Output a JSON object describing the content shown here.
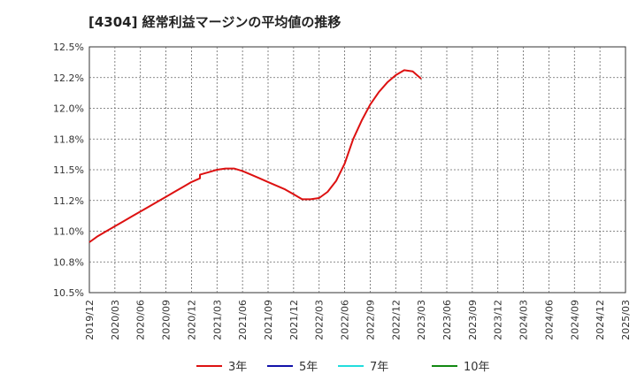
{
  "chart_data": {
    "type": "line",
    "title": "[4304]  経常利益マージンの平均値の推移",
    "xlabel": "",
    "ylabel": "",
    "ylim": [
      10.5,
      12.5
    ],
    "y_ticks": [
      "10.5%",
      "10.8%",
      "11.0%",
      "11.2%",
      "11.5%",
      "11.8%",
      "12.0%",
      "12.2%",
      "12.5%"
    ],
    "y_tick_values": [
      10.5,
      10.75,
      11.0,
      11.25,
      11.5,
      11.75,
      12.0,
      12.25,
      12.5
    ],
    "x_ticks": [
      "2019/12",
      "2020/03",
      "2020/06",
      "2020/09",
      "2020/12",
      "2021/03",
      "2021/06",
      "2021/09",
      "2021/12",
      "2022/03",
      "2022/06",
      "2022/09",
      "2022/12",
      "2023/03",
      "2023/06",
      "2023/09",
      "2023/12",
      "2024/03",
      "2024/06",
      "2024/09",
      "2024/12",
      "2025/03"
    ],
    "grid": true,
    "legend_position": "bottom",
    "series": [
      {
        "name": "3年",
        "color": "#dd1111",
        "points": [
          [
            "2019/12",
            10.91
          ],
          [
            "2020/01",
            10.96
          ],
          [
            "2020/02",
            11.0
          ],
          [
            "2020/03",
            11.04
          ],
          [
            "2020/04",
            11.08
          ],
          [
            "2020/05",
            11.12
          ],
          [
            "2020/06",
            11.16
          ],
          [
            "2020/07",
            11.2
          ],
          [
            "2020/08",
            11.24
          ],
          [
            "2020/09",
            11.28
          ],
          [
            "2020/10",
            11.32
          ],
          [
            "2020/11",
            11.36
          ],
          [
            "2020/12",
            11.4
          ],
          [
            "2020/13",
            11.43
          ],
          [
            "2021/01",
            11.46
          ],
          [
            "2021/02",
            11.48
          ],
          [
            "2021/03",
            11.5
          ],
          [
            "2021/04",
            11.51
          ],
          [
            "2021/05",
            11.51
          ],
          [
            "2021/06",
            11.49
          ],
          [
            "2021/07",
            11.46
          ],
          [
            "2021/08",
            11.43
          ],
          [
            "2021/09",
            11.4
          ],
          [
            "2021/10",
            11.37
          ],
          [
            "2021/11",
            11.34
          ],
          [
            "2021/12",
            11.3
          ],
          [
            "2022/01",
            11.26
          ],
          [
            "2022/02",
            11.26
          ],
          [
            "2022/03",
            11.27
          ],
          [
            "2022/04",
            11.32
          ],
          [
            "2022/05",
            11.41
          ],
          [
            "2022/06",
            11.55
          ],
          [
            "2022/07",
            11.75
          ],
          [
            "2022/08",
            11.9
          ],
          [
            "2022/09",
            12.03
          ],
          [
            "2022/10",
            12.13
          ],
          [
            "2022/11",
            12.21
          ],
          [
            "2022/12",
            12.27
          ],
          [
            "2023/01",
            12.31
          ],
          [
            "2023/02",
            12.3
          ],
          [
            "2023/03",
            12.24
          ]
        ]
      },
      {
        "name": "5年",
        "color": "#1111aa",
        "points": []
      },
      {
        "name": "7年",
        "color": "#22dddd",
        "points": []
      },
      {
        "name": "10年",
        "color": "#118811",
        "points": []
      }
    ]
  }
}
